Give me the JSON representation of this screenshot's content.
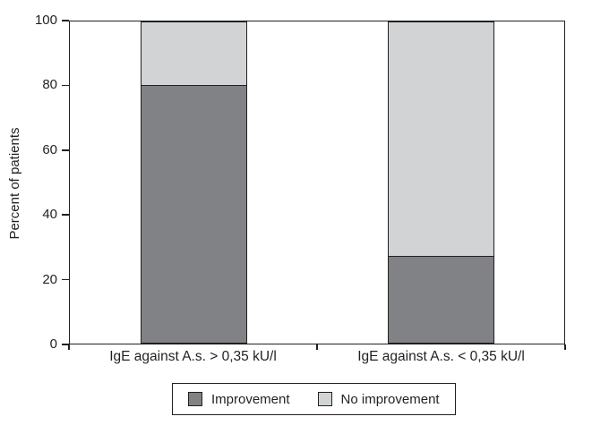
{
  "figure": {
    "y_axis_title": "Percent of patients"
  },
  "chart_data": {
    "type": "bar",
    "subtype": "stacked-vertical",
    "title": "",
    "xlabel": "",
    "ylabel": "Percent of patients",
    "categories": [
      "IgE against A.s. > 0,35 kU/l",
      "IgE against A.s. < 0,35 kU/l"
    ],
    "series": [
      {
        "name": "Improvement",
        "values": [
          80,
          27
        ],
        "color": "#808285"
      },
      {
        "name": "No improvement",
        "values": [
          20,
          73
        ],
        "color": "#d1d3d4"
      }
    ],
    "ylim": [
      0,
      100
    ],
    "yticks": [
      0,
      20,
      40,
      60,
      80,
      100
    ],
    "grid": false,
    "plot_frame": true,
    "legend_position": "bottom",
    "colors": {
      "improvement": "#808285",
      "no_improvement": "#d1d3d4",
      "axis_line": "#231f20",
      "text": "#231f20",
      "background": "#ffffff"
    }
  }
}
